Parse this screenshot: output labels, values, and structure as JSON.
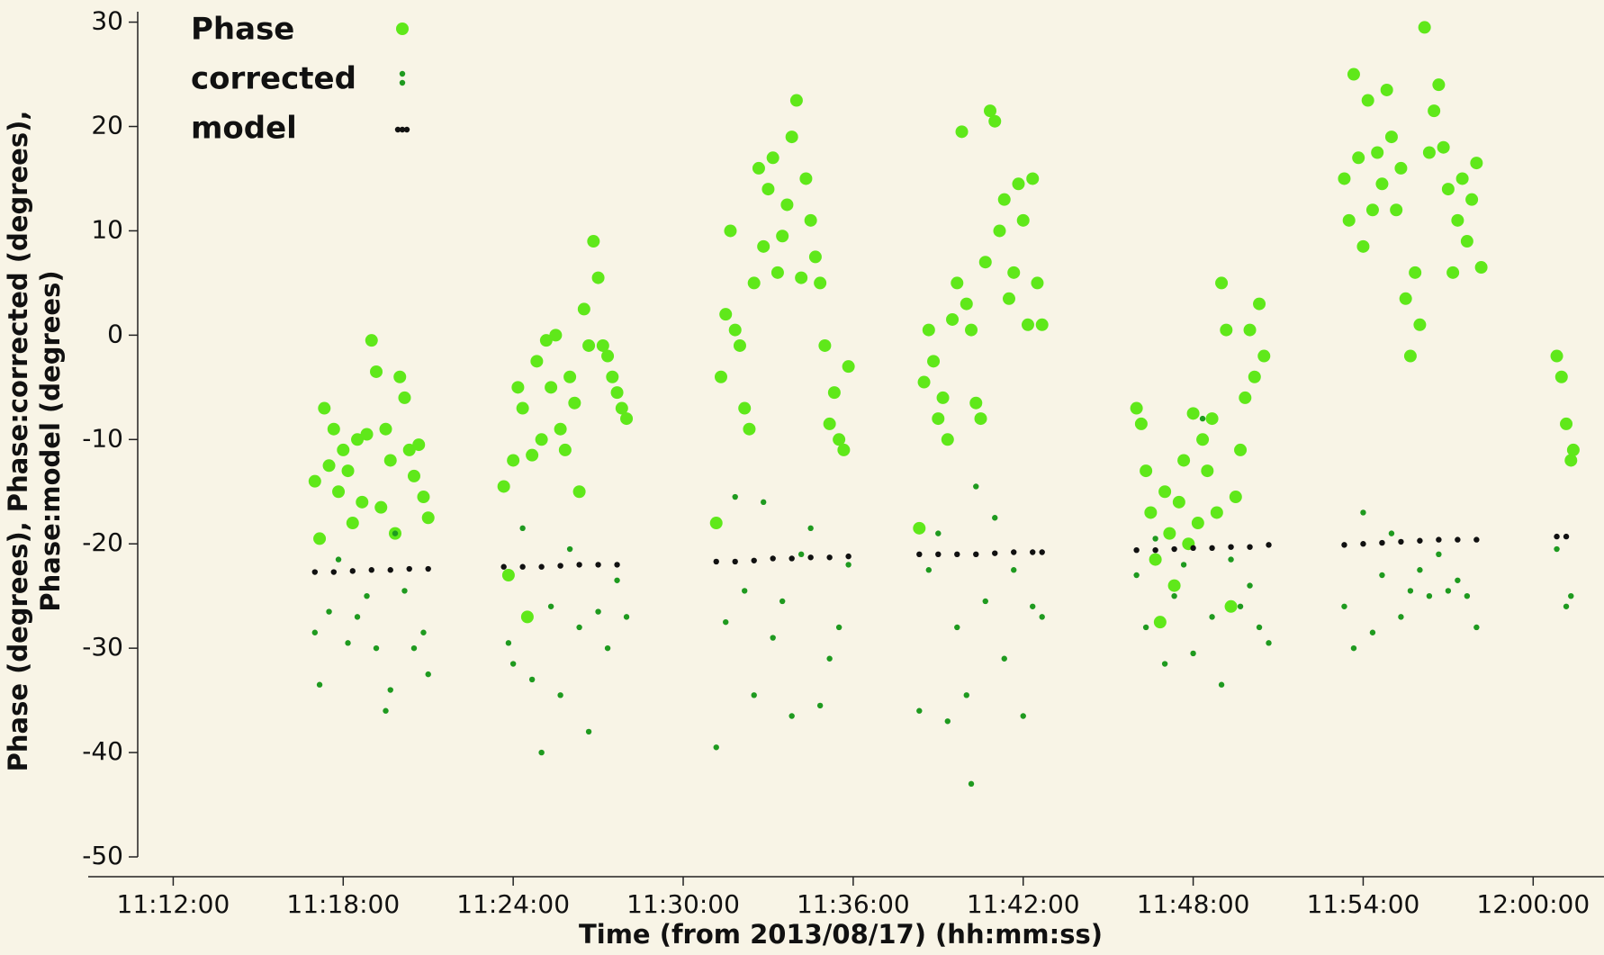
{
  "chart_data": {
    "type": "scatter",
    "xlabel": "Time (from 2013/08/17) (hh:mm:ss)",
    "ylabel": [
      "Phase (degrees), Phase:corrected (degrees),",
      "Phase:model (degrees)"
    ],
    "xlim": [
      "11:09:00",
      "12:02:30"
    ],
    "xticks": [
      "11:12:00",
      "11:18:00",
      "11:24:00",
      "11:30:00",
      "11:36:00",
      "11:42:00",
      "11:48:00",
      "11:54:00",
      "12:00:00"
    ],
    "ylim": [
      -50,
      31
    ],
    "yticks": [
      -50,
      -40,
      -30,
      -20,
      -10,
      0,
      10,
      20,
      30
    ],
    "grid": false,
    "legend": "upper left",
    "series": [
      {
        "name": "Phase",
        "color": "#5fe81a",
        "x": [
          "11:17:00",
          "11:17:10",
          "11:17:20",
          "11:17:30",
          "11:17:40",
          "11:17:50",
          "11:18:00",
          "11:18:10",
          "11:18:20",
          "11:18:30",
          "11:18:40",
          "11:18:50",
          "11:19:00",
          "11:19:10",
          "11:19:20",
          "11:19:30",
          "11:19:40",
          "11:19:50",
          "11:20:00",
          "11:20:10",
          "11:20:20",
          "11:20:30",
          "11:20:40",
          "11:20:50",
          "11:21:00",
          "11:23:40",
          "11:23:50",
          "11:24:00",
          "11:24:10",
          "11:24:20",
          "11:24:30",
          "11:24:40",
          "11:24:50",
          "11:25:00",
          "11:25:10",
          "11:25:20",
          "11:25:30",
          "11:25:40",
          "11:25:50",
          "11:26:00",
          "11:26:10",
          "11:26:20",
          "11:26:30",
          "11:26:40",
          "11:26:50",
          "11:27:00",
          "11:27:10",
          "11:27:20",
          "11:27:30",
          "11:27:40",
          "11:27:50",
          "11:28:00",
          "11:31:10",
          "11:31:20",
          "11:31:30",
          "11:31:40",
          "11:31:50",
          "11:32:00",
          "11:32:10",
          "11:32:20",
          "11:32:30",
          "11:32:40",
          "11:32:50",
          "11:33:00",
          "11:33:10",
          "11:33:20",
          "11:33:30",
          "11:33:40",
          "11:33:50",
          "11:34:00",
          "11:34:10",
          "11:34:20",
          "11:34:30",
          "11:34:40",
          "11:34:50",
          "11:35:00",
          "11:35:10",
          "11:35:20",
          "11:35:30",
          "11:35:40",
          "11:35:50",
          "11:38:20",
          "11:38:30",
          "11:38:40",
          "11:38:50",
          "11:39:00",
          "11:39:10",
          "11:39:20",
          "11:39:30",
          "11:39:40",
          "11:39:50",
          "11:40:00",
          "11:40:10",
          "11:40:20",
          "11:40:30",
          "11:40:40",
          "11:40:50",
          "11:41:00",
          "11:41:10",
          "11:41:20",
          "11:41:30",
          "11:41:40",
          "11:41:50",
          "11:42:00",
          "11:42:10",
          "11:42:20",
          "11:42:30",
          "11:42:40",
          "11:46:00",
          "11:46:10",
          "11:46:20",
          "11:46:30",
          "11:46:40",
          "11:46:50",
          "11:47:00",
          "11:47:10",
          "11:47:20",
          "11:47:30",
          "11:47:40",
          "11:47:50",
          "11:48:00",
          "11:48:10",
          "11:48:20",
          "11:48:30",
          "11:48:40",
          "11:48:50",
          "11:49:00",
          "11:49:10",
          "11:49:20",
          "11:49:30",
          "11:49:40",
          "11:49:50",
          "11:50:00",
          "11:50:10",
          "11:50:20",
          "11:50:30",
          "11:53:20",
          "11:53:30",
          "11:53:40",
          "11:53:50",
          "11:54:00",
          "11:54:10",
          "11:54:20",
          "11:54:30",
          "11:54:40",
          "11:54:50",
          "11:55:00",
          "11:55:10",
          "11:55:20",
          "11:55:30",
          "11:55:40",
          "11:55:50",
          "11:56:00",
          "11:56:10",
          "11:56:20",
          "11:56:30",
          "11:56:40",
          "11:56:50",
          "11:57:00",
          "11:57:10",
          "11:57:20",
          "11:57:30",
          "11:57:40",
          "11:57:50",
          "11:58:00",
          "11:58:10",
          "12:00:50",
          "12:01:00",
          "12:01:10",
          "12:01:20",
          "12:01:25"
        ],
        "values": [
          -14,
          -19.5,
          -7,
          -12.5,
          -9,
          -15,
          -11,
          -13,
          -18,
          -10,
          -16,
          -9.5,
          -0.5,
          -3.5,
          -16.5,
          -9,
          -12,
          -19,
          -4,
          -6,
          -11,
          -13.5,
          -10.5,
          -15.5,
          -17.5,
          -14.5,
          -23,
          -12,
          -5,
          -7,
          -27,
          -11.5,
          -2.5,
          -10,
          -0.5,
          -5,
          0,
          -9,
          -11,
          -4,
          -6.5,
          -15,
          2.5,
          -1,
          9,
          5.5,
          -1,
          -2,
          -4,
          -5.5,
          -7,
          -8,
          -18,
          -4,
          2,
          10,
          0.5,
          -1,
          -7,
          -9,
          5,
          16,
          8.5,
          14,
          17,
          6,
          9.5,
          12.5,
          19,
          22.5,
          5.5,
          15,
          11,
          7.5,
          5,
          -1,
          -8.5,
          -5.5,
          -10,
          -11,
          -3,
          -18.5,
          -4.5,
          0.5,
          -2.5,
          -8,
          -6,
          -10,
          1.5,
          5,
          19.5,
          3,
          0.5,
          -6.5,
          -8,
          7,
          21.5,
          20.5,
          10,
          13,
          3.5,
          6,
          14.5,
          11,
          1,
          15,
          5,
          1,
          -7,
          -8.5,
          -13,
          -17,
          -21.5,
          -27.5,
          -15,
          -19,
          -24,
          -16,
          -12,
          -20,
          -7.5,
          -18,
          -10,
          -13,
          -8,
          -17,
          5,
          0.5,
          -26,
          -15.5,
          -11,
          -6,
          0.5,
          -4,
          3,
          -2,
          15,
          11,
          25,
          17,
          8.5,
          22.5,
          12,
          17.5,
          14.5,
          23.5,
          19,
          12,
          16,
          3.5,
          -2,
          6,
          1,
          29.5,
          17.5,
          21.5,
          24,
          18,
          14,
          6,
          11,
          15,
          9,
          13,
          16.5,
          6.5,
          -2,
          -4,
          -8.5,
          -12,
          -11
        ]
      },
      {
        "name": "corrected",
        "color": "#1f9a1f",
        "x": [
          "11:17:00",
          "11:17:10",
          "11:17:30",
          "11:17:50",
          "11:18:10",
          "11:18:30",
          "11:18:50",
          "11:19:10",
          "11:19:30",
          "11:19:40",
          "11:19:50",
          "11:20:10",
          "11:20:30",
          "11:20:50",
          "11:21:00",
          "11:23:50",
          "11:24:00",
          "11:24:20",
          "11:24:40",
          "11:25:00",
          "11:25:20",
          "11:25:40",
          "11:26:00",
          "11:26:20",
          "11:26:40",
          "11:27:00",
          "11:27:20",
          "11:27:40",
          "11:28:00",
          "11:31:10",
          "11:31:30",
          "11:31:50",
          "11:32:10",
          "11:32:30",
          "11:32:50",
          "11:33:10",
          "11:33:30",
          "11:33:50",
          "11:34:10",
          "11:34:30",
          "11:34:50",
          "11:35:10",
          "11:35:30",
          "11:35:50",
          "11:38:20",
          "11:38:40",
          "11:39:00",
          "11:39:20",
          "11:39:40",
          "11:40:00",
          "11:40:10",
          "11:40:20",
          "11:40:40",
          "11:41:00",
          "11:41:20",
          "11:41:40",
          "11:42:00",
          "11:42:20",
          "11:42:40",
          "11:46:00",
          "11:46:20",
          "11:46:40",
          "11:47:00",
          "11:47:20",
          "11:47:40",
          "11:48:00",
          "11:48:20",
          "11:48:40",
          "11:49:00",
          "11:49:20",
          "11:49:40",
          "11:50:00",
          "11:50:20",
          "11:50:40",
          "11:53:20",
          "11:53:40",
          "11:54:00",
          "11:54:20",
          "11:54:40",
          "11:55:00",
          "11:55:20",
          "11:55:40",
          "11:56:00",
          "11:56:20",
          "11:56:40",
          "11:57:00",
          "11:57:20",
          "11:57:40",
          "11:58:00",
          "12:00:50",
          "12:01:10",
          "12:01:20"
        ],
        "values": [
          -28.5,
          -33.5,
          -26.5,
          -21.5,
          -29.5,
          -27,
          -25,
          -30,
          -36,
          -34,
          -19,
          -24.5,
          -30,
          -28.5,
          -32.5,
          -29.5,
          -31.5,
          -18.5,
          -33,
          -40,
          -26,
          -34.5,
          -20.5,
          -28,
          -38,
          -26.5,
          -30,
          -23.5,
          -27,
          -39.5,
          -27.5,
          -15.5,
          -24.5,
          -34.5,
          -16,
          -29,
          -25.5,
          -36.5,
          -21,
          -18.5,
          -35.5,
          -31,
          -28,
          -22,
          -36,
          -22.5,
          -19,
          -37,
          -28,
          -34.5,
          -43,
          -14.5,
          -25.5,
          -17.5,
          -31,
          -22.5,
          -36.5,
          -26,
          -27,
          -23,
          -28,
          -19.5,
          -31.5,
          -25,
          -22,
          -30.5,
          -8,
          -27,
          -33.5,
          -21.5,
          -26,
          -24,
          -28,
          -29.5,
          -26,
          -30,
          -17,
          -28.5,
          -23,
          -19,
          -27,
          -24.5,
          -22.5,
          -25,
          -21,
          -24.5,
          -23.5,
          -25,
          -28,
          -20.5,
          -26,
          -25
        ]
      },
      {
        "name": "model",
        "color": "#111111",
        "x": [
          "11:17:00",
          "11:17:40",
          "11:18:20",
          "11:19:00",
          "11:19:40",
          "11:20:20",
          "11:21:00",
          "11:23:40",
          "11:24:20",
          "11:25:00",
          "11:25:40",
          "11:26:20",
          "11:27:00",
          "11:27:40",
          "11:31:10",
          "11:31:50",
          "11:32:30",
          "11:33:10",
          "11:33:50",
          "11:34:30",
          "11:35:10",
          "11:35:50",
          "11:38:20",
          "11:39:00",
          "11:39:40",
          "11:40:20",
          "11:41:00",
          "11:41:40",
          "11:42:20",
          "11:42:40",
          "11:46:00",
          "11:46:40",
          "11:47:20",
          "11:48:00",
          "11:48:40",
          "11:49:20",
          "11:50:00",
          "11:50:40",
          "11:53:20",
          "11:54:00",
          "11:54:40",
          "11:55:20",
          "11:56:00",
          "11:56:40",
          "11:57:20",
          "11:58:00",
          "12:00:50",
          "12:01:10"
        ],
        "values": [
          -22.7,
          -22.7,
          -22.6,
          -22.5,
          -22.5,
          -22.4,
          -22.4,
          -22.2,
          -22.2,
          -22.2,
          -22.1,
          -22,
          -22,
          -22,
          -21.7,
          -21.7,
          -21.6,
          -21.4,
          -21.4,
          -21.3,
          -21.3,
          -21.2,
          -21,
          -21,
          -21,
          -21,
          -20.9,
          -20.8,
          -20.8,
          -20.8,
          -20.6,
          -20.6,
          -20.5,
          -20.4,
          -20.4,
          -20.3,
          -20.3,
          -20.1,
          -20.1,
          -20,
          -19.9,
          -19.8,
          -19.7,
          -19.6,
          -19.6,
          -19.6,
          -19.3,
          -19.3
        ]
      }
    ]
  }
}
